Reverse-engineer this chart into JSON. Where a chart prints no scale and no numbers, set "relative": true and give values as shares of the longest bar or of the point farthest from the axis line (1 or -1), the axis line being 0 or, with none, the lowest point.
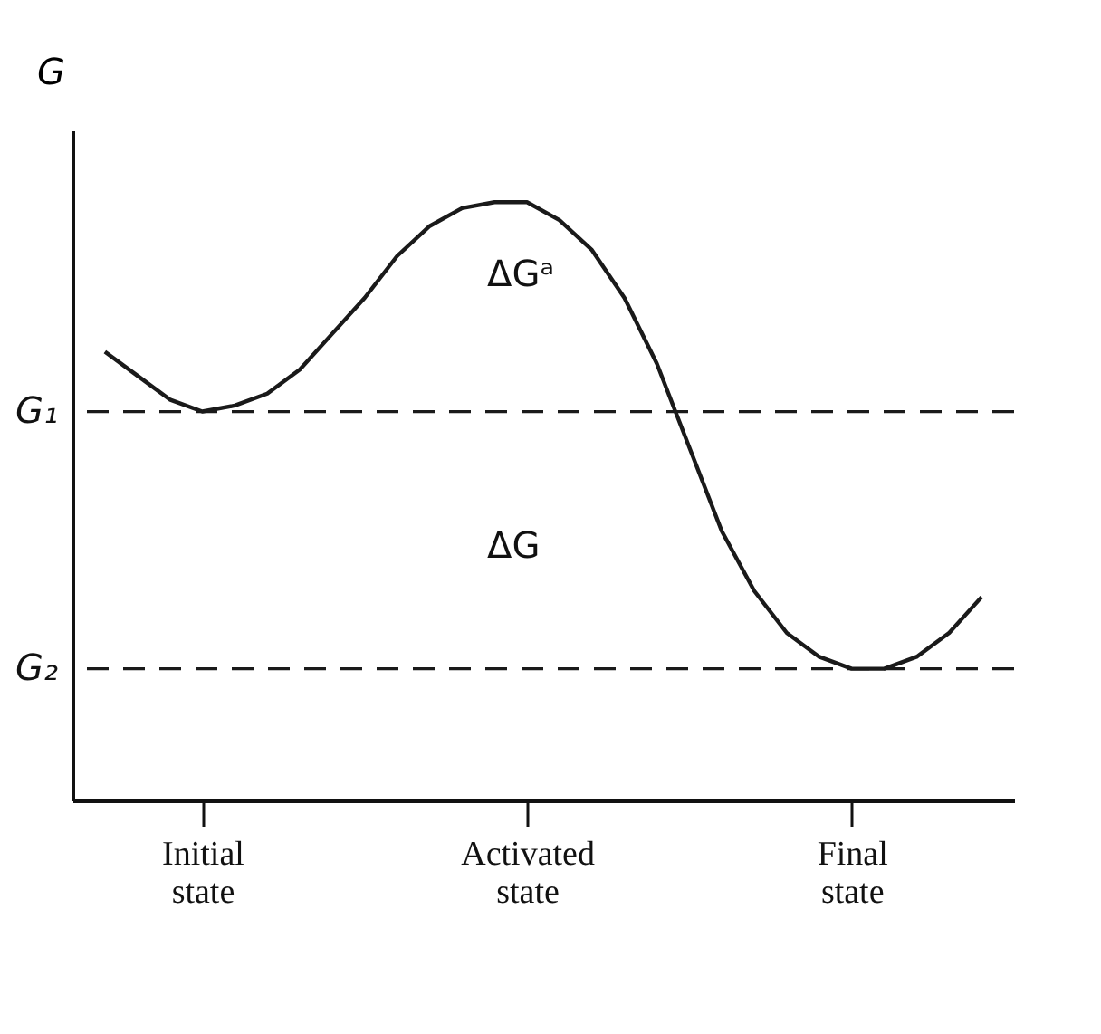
{
  "chart_data": {
    "type": "line",
    "relative": true,
    "ylabel": "G",
    "categories": [
      null,
      null,
      null,
      "Initial state",
      null,
      null,
      null,
      null,
      null,
      null,
      null,
      null,
      null,
      "Activated state",
      null,
      null,
      null,
      null,
      null,
      null,
      null,
      null,
      null,
      "Final state",
      null,
      null,
      null,
      null
    ],
    "series": [
      {
        "color": "#1a1a1a",
        "values": [
          0.75,
          0.71,
          0.67,
          0.65,
          0.66,
          0.68,
          0.72,
          0.78,
          0.84,
          0.91,
          0.96,
          0.99,
          1.0,
          1.0,
          0.97,
          0.92,
          0.84,
          0.73,
          0.59,
          0.45,
          0.35,
          0.28,
          0.24,
          0.22,
          0.22,
          0.24,
          0.28,
          0.34
        ]
      }
    ],
    "ref_lines": [
      {
        "axis": "y",
        "value": 0.65,
        "label": "G₁",
        "line_style": "dashed",
        "color": "#1a1a1a"
      },
      {
        "axis": "y",
        "value": 0.22,
        "label": "G₂",
        "line_style": "dashed",
        "color": "#1a1a1a"
      }
    ],
    "annotations": [
      "ΔGᵃ",
      "ΔG"
    ],
    "grid": false,
    "marker": "none",
    "line_style": "solid"
  }
}
